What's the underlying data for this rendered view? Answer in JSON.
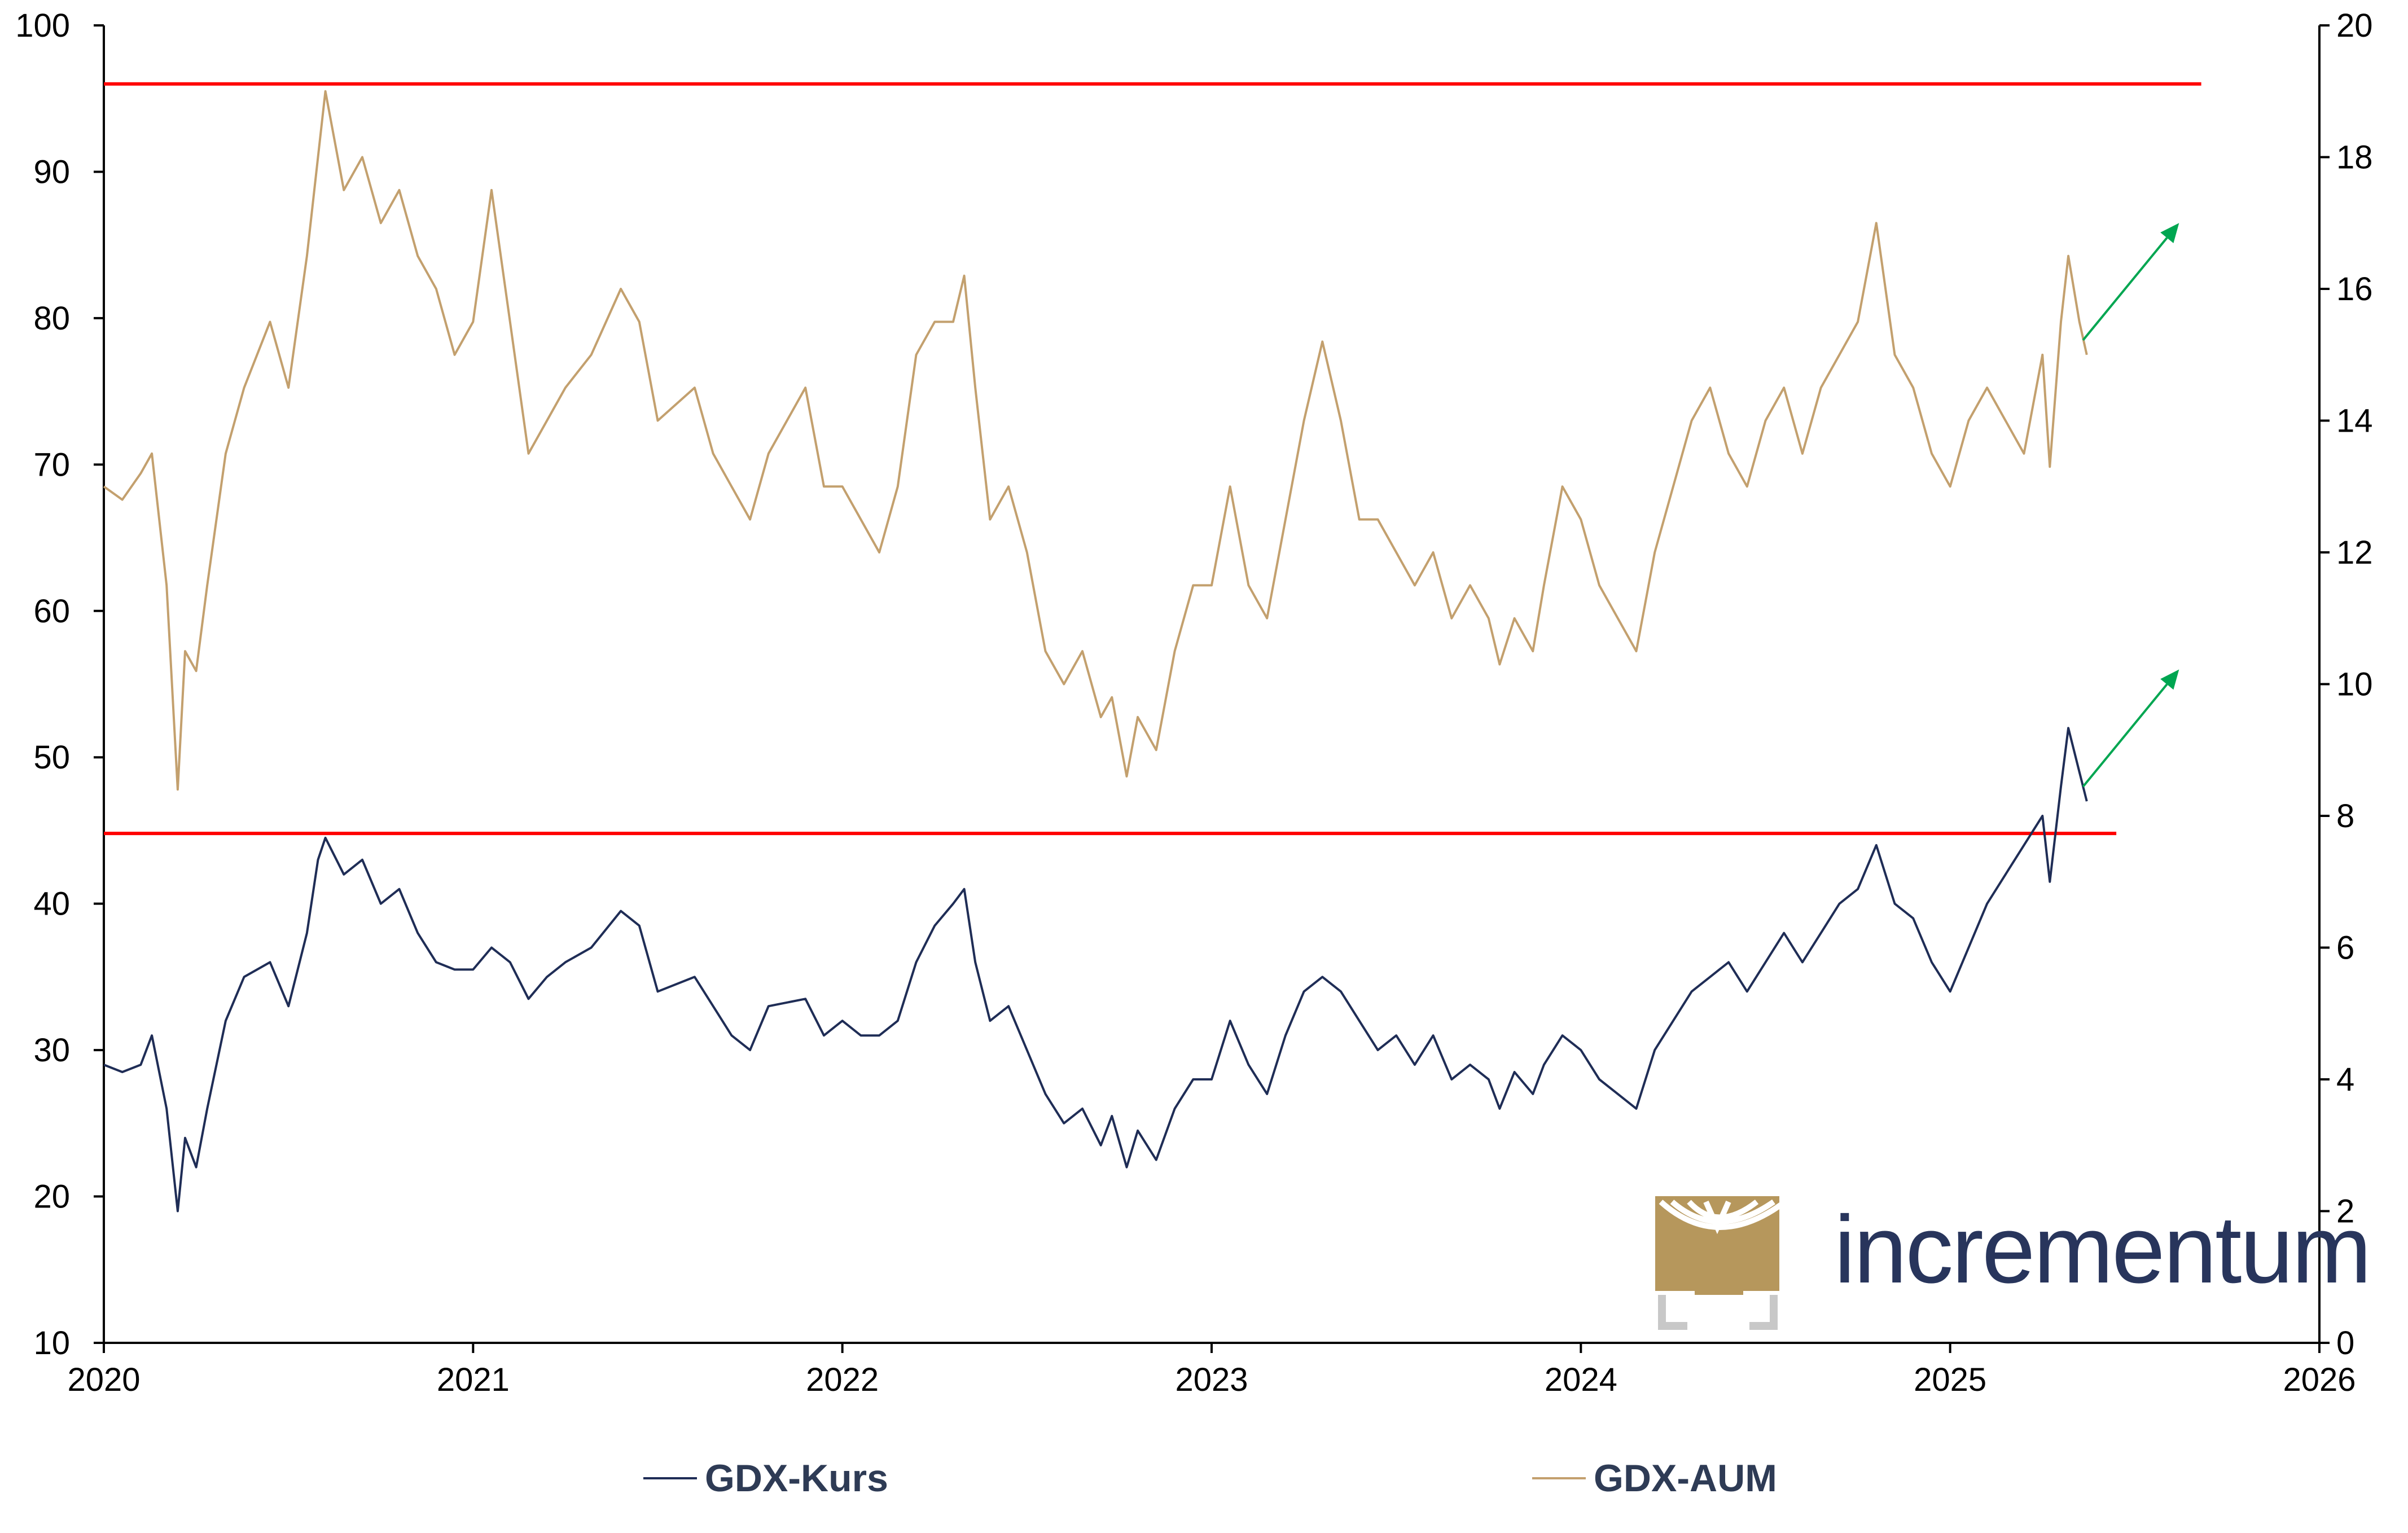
{
  "brand": {
    "name": "incrementum",
    "logo_icon": "tree-logo-icon",
    "accent": "#b6975c",
    "text_color": "#28355c"
  },
  "colors": {
    "kurs": "#1f2d56",
    "aum": "#c3a06e",
    "resistance": "#ff0000",
    "arrow": "#00a651"
  },
  "chart_data": {
    "type": "line",
    "title": "",
    "x_range": [
      2020.0,
      2026.0
    ],
    "x_ticks": [
      "2020",
      "2021",
      "2022",
      "2023",
      "2024",
      "2025",
      "2026"
    ],
    "y_left": {
      "range": [
        10,
        100
      ],
      "ticks": [
        "10",
        "20",
        "30",
        "40",
        "50",
        "60",
        "70",
        "80",
        "90",
        "100"
      ]
    },
    "y_right": {
      "range": [
        0,
        20
      ],
      "ticks": [
        "0",
        "2",
        "4",
        "6",
        "8",
        "10",
        "12",
        "14",
        "16",
        "18",
        "20"
      ]
    },
    "grid": false,
    "legend_position": "bottom",
    "series": [
      {
        "name": "GDX-Kurs",
        "axis": "left",
        "points": [
          [
            2020.0,
            29
          ],
          [
            2020.05,
            28.5
          ],
          [
            2020.1,
            29
          ],
          [
            2020.13,
            31
          ],
          [
            2020.17,
            26
          ],
          [
            2020.2,
            19
          ],
          [
            2020.22,
            24
          ],
          [
            2020.25,
            22
          ],
          [
            2020.28,
            26
          ],
          [
            2020.33,
            32
          ],
          [
            2020.38,
            35
          ],
          [
            2020.45,
            36
          ],
          [
            2020.5,
            33
          ],
          [
            2020.55,
            38
          ],
          [
            2020.58,
            43
          ],
          [
            2020.6,
            44.5
          ],
          [
            2020.65,
            42
          ],
          [
            2020.7,
            43
          ],
          [
            2020.75,
            40
          ],
          [
            2020.8,
            41
          ],
          [
            2020.85,
            38
          ],
          [
            2020.9,
            36
          ],
          [
            2020.95,
            35.5
          ],
          [
            2021.0,
            35.5
          ],
          [
            2021.05,
            37
          ],
          [
            2021.1,
            36
          ],
          [
            2021.15,
            33.5
          ],
          [
            2021.2,
            35
          ],
          [
            2021.25,
            36
          ],
          [
            2021.32,
            37
          ],
          [
            2021.4,
            39.5
          ],
          [
            2021.45,
            38.5
          ],
          [
            2021.5,
            34
          ],
          [
            2021.6,
            35
          ],
          [
            2021.65,
            33
          ],
          [
            2021.7,
            31
          ],
          [
            2021.75,
            30
          ],
          [
            2021.8,
            33
          ],
          [
            2021.9,
            33.5
          ],
          [
            2021.95,
            31
          ],
          [
            2022.0,
            32
          ],
          [
            2022.05,
            31
          ],
          [
            2022.1,
            31
          ],
          [
            2022.15,
            32
          ],
          [
            2022.2,
            36
          ],
          [
            2022.25,
            38.5
          ],
          [
            2022.3,
            40
          ],
          [
            2022.33,
            41
          ],
          [
            2022.36,
            36
          ],
          [
            2022.4,
            32
          ],
          [
            2022.45,
            33
          ],
          [
            2022.5,
            30
          ],
          [
            2022.55,
            27
          ],
          [
            2022.6,
            25
          ],
          [
            2022.65,
            26
          ],
          [
            2022.7,
            23.5
          ],
          [
            2022.73,
            25.5
          ],
          [
            2022.77,
            22
          ],
          [
            2022.8,
            24.5
          ],
          [
            2022.85,
            22.5
          ],
          [
            2022.9,
            26
          ],
          [
            2022.95,
            28
          ],
          [
            2023.0,
            28
          ],
          [
            2023.05,
            32
          ],
          [
            2023.1,
            29
          ],
          [
            2023.15,
            27
          ],
          [
            2023.2,
            31
          ],
          [
            2023.25,
            34
          ],
          [
            2023.3,
            35
          ],
          [
            2023.35,
            34
          ],
          [
            2023.4,
            32
          ],
          [
            2023.45,
            30
          ],
          [
            2023.5,
            31
          ],
          [
            2023.55,
            29
          ],
          [
            2023.6,
            31
          ],
          [
            2023.65,
            28
          ],
          [
            2023.7,
            29
          ],
          [
            2023.75,
            28
          ],
          [
            2023.78,
            26
          ],
          [
            2023.82,
            28.5
          ],
          [
            2023.87,
            27
          ],
          [
            2023.9,
            29
          ],
          [
            2023.95,
            31
          ],
          [
            2024.0,
            30
          ],
          [
            2024.05,
            28
          ],
          [
            2024.1,
            27
          ],
          [
            2024.15,
            26
          ],
          [
            2024.2,
            30
          ],
          [
            2024.25,
            32
          ],
          [
            2024.3,
            34
          ],
          [
            2024.35,
            35
          ],
          [
            2024.4,
            36
          ],
          [
            2024.45,
            34
          ],
          [
            2024.5,
            36
          ],
          [
            2024.55,
            38
          ],
          [
            2024.6,
            36
          ],
          [
            2024.65,
            38
          ],
          [
            2024.7,
            40
          ],
          [
            2024.75,
            41
          ],
          [
            2024.8,
            44
          ],
          [
            2024.85,
            40
          ],
          [
            2024.9,
            39
          ],
          [
            2024.95,
            36
          ],
          [
            2025.0,
            34
          ],
          [
            2025.05,
            37
          ],
          [
            2025.1,
            40
          ],
          [
            2025.15,
            42
          ],
          [
            2025.2,
            44
          ],
          [
            2025.25,
            46
          ],
          [
            2025.27,
            41.5
          ],
          [
            2025.3,
            48
          ],
          [
            2025.32,
            52
          ],
          [
            2025.35,
            49
          ],
          [
            2025.37,
            47
          ]
        ]
      },
      {
        "name": "GDX-AUM",
        "axis": "right",
        "points": [
          [
            2020.0,
            13.0
          ],
          [
            2020.05,
            12.8
          ],
          [
            2020.1,
            13.2
          ],
          [
            2020.13,
            13.5
          ],
          [
            2020.17,
            11.5
          ],
          [
            2020.2,
            8.4
          ],
          [
            2020.22,
            10.5
          ],
          [
            2020.25,
            10.2
          ],
          [
            2020.28,
            11.5
          ],
          [
            2020.33,
            13.5
          ],
          [
            2020.38,
            14.5
          ],
          [
            2020.45,
            15.5
          ],
          [
            2020.5,
            14.5
          ],
          [
            2020.55,
            16.5
          ],
          [
            2020.58,
            18.0
          ],
          [
            2020.6,
            19.0
          ],
          [
            2020.65,
            17.5
          ],
          [
            2020.7,
            18.0
          ],
          [
            2020.75,
            17.0
          ],
          [
            2020.8,
            17.5
          ],
          [
            2020.85,
            16.5
          ],
          [
            2020.9,
            16.0
          ],
          [
            2020.95,
            15.0
          ],
          [
            2021.0,
            15.5
          ],
          [
            2021.05,
            17.5
          ],
          [
            2021.1,
            15.5
          ],
          [
            2021.15,
            13.5
          ],
          [
            2021.2,
            14.0
          ],
          [
            2021.25,
            14.5
          ],
          [
            2021.32,
            15.0
          ],
          [
            2021.4,
            16.0
          ],
          [
            2021.45,
            15.5
          ],
          [
            2021.5,
            14.0
          ],
          [
            2021.6,
            14.5
          ],
          [
            2021.65,
            13.5
          ],
          [
            2021.7,
            13.0
          ],
          [
            2021.75,
            12.5
          ],
          [
            2021.8,
            13.5
          ],
          [
            2021.9,
            14.5
          ],
          [
            2021.95,
            13.0
          ],
          [
            2022.0,
            13.0
          ],
          [
            2022.05,
            12.5
          ],
          [
            2022.1,
            12.0
          ],
          [
            2022.15,
            13.0
          ],
          [
            2022.2,
            15.0
          ],
          [
            2022.25,
            15.5
          ],
          [
            2022.3,
            15.5
          ],
          [
            2022.33,
            16.2
          ],
          [
            2022.36,
            14.5
          ],
          [
            2022.4,
            12.5
          ],
          [
            2022.45,
            13.0
          ],
          [
            2022.5,
            12.0
          ],
          [
            2022.55,
            10.5
          ],
          [
            2022.6,
            10.0
          ],
          [
            2022.65,
            10.5
          ],
          [
            2022.7,
            9.5
          ],
          [
            2022.73,
            9.8
          ],
          [
            2022.77,
            8.6
          ],
          [
            2022.8,
            9.5
          ],
          [
            2022.85,
            9.0
          ],
          [
            2022.9,
            10.5
          ],
          [
            2022.95,
            11.5
          ],
          [
            2023.0,
            11.5
          ],
          [
            2023.05,
            13.0
          ],
          [
            2023.1,
            11.5
          ],
          [
            2023.15,
            11.0
          ],
          [
            2023.2,
            12.5
          ],
          [
            2023.25,
            14.0
          ],
          [
            2023.3,
            15.2
          ],
          [
            2023.35,
            14.0
          ],
          [
            2023.4,
            12.5
          ],
          [
            2023.45,
            12.5
          ],
          [
            2023.5,
            12.0
          ],
          [
            2023.55,
            11.5
          ],
          [
            2023.6,
            12.0
          ],
          [
            2023.65,
            11.0
          ],
          [
            2023.7,
            11.5
          ],
          [
            2023.75,
            11.0
          ],
          [
            2023.78,
            10.3
          ],
          [
            2023.82,
            11.0
          ],
          [
            2023.87,
            10.5
          ],
          [
            2023.9,
            11.5
          ],
          [
            2023.95,
            13.0
          ],
          [
            2024.0,
            12.5
          ],
          [
            2024.05,
            11.5
          ],
          [
            2024.1,
            11.0
          ],
          [
            2024.15,
            10.5
          ],
          [
            2024.2,
            12.0
          ],
          [
            2024.25,
            13.0
          ],
          [
            2024.3,
            14.0
          ],
          [
            2024.35,
            14.5
          ],
          [
            2024.4,
            13.5
          ],
          [
            2024.45,
            13.0
          ],
          [
            2024.5,
            14.0
          ],
          [
            2024.55,
            14.5
          ],
          [
            2024.6,
            13.5
          ],
          [
            2024.65,
            14.5
          ],
          [
            2024.7,
            15.0
          ],
          [
            2024.75,
            15.5
          ],
          [
            2024.8,
            17.0
          ],
          [
            2024.85,
            15.0
          ],
          [
            2024.9,
            14.5
          ],
          [
            2024.95,
            13.5
          ],
          [
            2025.0,
            13.0
          ],
          [
            2025.05,
            14.0
          ],
          [
            2025.1,
            14.5
          ],
          [
            2025.15,
            14.0
          ],
          [
            2025.2,
            13.5
          ],
          [
            2025.25,
            15.0
          ],
          [
            2025.27,
            13.3
          ],
          [
            2025.3,
            15.5
          ],
          [
            2025.32,
            16.5
          ],
          [
            2025.35,
            15.5
          ],
          [
            2025.37,
            15.0
          ]
        ]
      }
    ],
    "reference_lines": [
      {
        "axis": "left",
        "y": 96,
        "x_from": 2020.0,
        "x_to": 2025.68
      },
      {
        "axis": "left",
        "y": 44.8,
        "x_from": 2020.0,
        "x_to": 2025.45
      }
    ],
    "arrows": [
      {
        "axis": "left",
        "from": [
          2025.36,
          78.5
        ],
        "to": [
          2025.62,
          86.5
        ]
      },
      {
        "axis": "left",
        "from": [
          2025.36,
          48.0
        ],
        "to": [
          2025.62,
          56.0
        ]
      }
    ]
  }
}
